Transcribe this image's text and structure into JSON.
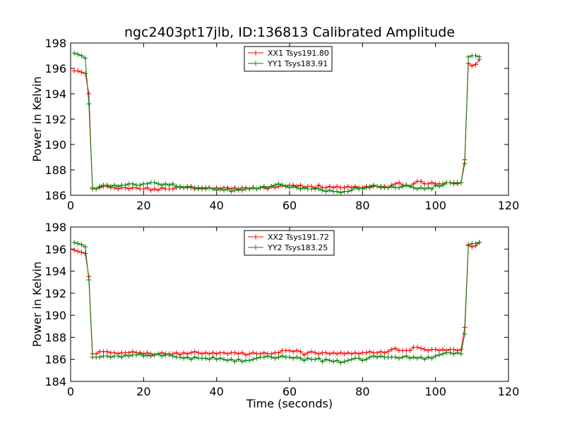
{
  "chart_data": {
    "type": "line",
    "title": "ngc2403pt17jlb, ID:136813 Calibrated Amplitude",
    "colors": {
      "red": "#ff0000",
      "green": "#007f00"
    },
    "panels": [
      {
        "ylabel": "Power in Kelvin",
        "xlabel": "",
        "xlim": [
          0,
          120
        ],
        "ylim": [
          186,
          198
        ],
        "xticks": [
          "0",
          "20",
          "40",
          "60",
          "80",
          "100",
          "120"
        ],
        "yticks": [
          "186",
          "188",
          "190",
          "192",
          "194",
          "196",
          "198"
        ],
        "legend_position": "top-center",
        "series": [
          {
            "name": "XX1 Tsys191.80",
            "color": "#ff0000",
            "x": [
              1,
              2,
              3,
              4,
              5,
              6,
              7,
              8,
              9,
              10,
              11,
              12,
              13,
              14,
              15,
              16,
              17,
              18,
              19,
              20,
              21,
              22,
              23,
              24,
              25,
              26,
              27,
              28,
              29,
              30,
              31,
              32,
              33,
              34,
              35,
              36,
              37,
              38,
              39,
              40,
              41,
              42,
              43,
              44,
              45,
              46,
              47,
              48,
              49,
              50,
              51,
              52,
              53,
              54,
              55,
              56,
              57,
              58,
              59,
              60,
              61,
              62,
              63,
              64,
              65,
              66,
              67,
              68,
              69,
              70,
              71,
              72,
              73,
              74,
              75,
              76,
              77,
              78,
              79,
              80,
              81,
              82,
              83,
              84,
              85,
              86,
              87,
              88,
              89,
              90,
              91,
              92,
              93,
              94,
              95,
              96,
              97,
              98,
              99,
              100,
              101,
              102,
              103,
              104,
              105,
              106,
              107,
              108,
              109,
              110,
              111,
              112
            ],
            "y": [
              195.8,
              195.8,
              195.7,
              195.6,
              194.0,
              186.5,
              186.5,
              186.6,
              186.7,
              186.7,
              186.6,
              186.6,
              186.5,
              186.6,
              186.6,
              186.5,
              186.6,
              186.6,
              186.5,
              186.5,
              186.6,
              186.4,
              186.5,
              186.4,
              186.6,
              186.5,
              186.5,
              186.5,
              186.6,
              186.6,
              186.6,
              186.6,
              186.7,
              186.5,
              186.6,
              186.5,
              186.6,
              186.6,
              186.5,
              186.6,
              186.5,
              186.6,
              186.6,
              186.5,
              186.6,
              186.4,
              186.6,
              186.6,
              186.5,
              186.6,
              186.5,
              186.6,
              186.6,
              186.5,
              186.7,
              186.6,
              186.7,
              186.8,
              186.7,
              186.8,
              186.8,
              186.7,
              186.8,
              186.6,
              186.7,
              186.7,
              186.5,
              186.8,
              186.6,
              186.6,
              186.7,
              186.6,
              186.7,
              186.6,
              186.6,
              186.7,
              186.6,
              186.7,
              186.6,
              186.6,
              186.7,
              186.6,
              186.7,
              186.7,
              186.6,
              186.7,
              186.6,
              186.8,
              186.9,
              187.0,
              186.8,
              186.8,
              186.7,
              186.9,
              187.1,
              187.1,
              186.9,
              186.9,
              187.0,
              186.9,
              186.9,
              186.9,
              187.0,
              187.0,
              187.0,
              186.9,
              187.0,
              188.8,
              196.4,
              196.2,
              196.3,
              196.7
            ]
          },
          {
            "name": "YY1 Tsys183.91",
            "color": "#007f00",
            "x": [
              1,
              2,
              3,
              4,
              5,
              6,
              7,
              8,
              9,
              10,
              11,
              12,
              13,
              14,
              15,
              16,
              17,
              18,
              19,
              20,
              21,
              22,
              23,
              24,
              25,
              26,
              27,
              28,
              29,
              30,
              31,
              32,
              33,
              34,
              35,
              36,
              37,
              38,
              39,
              40,
              41,
              42,
              43,
              44,
              45,
              46,
              47,
              48,
              49,
              50,
              51,
              52,
              53,
              54,
              55,
              56,
              57,
              58,
              59,
              60,
              61,
              62,
              63,
              64,
              65,
              66,
              67,
              68,
              69,
              70,
              71,
              72,
              73,
              74,
              75,
              76,
              77,
              78,
              79,
              80,
              81,
              82,
              83,
              84,
              85,
              86,
              87,
              88,
              89,
              90,
              91,
              92,
              93,
              94,
              95,
              96,
              97,
              98,
              99,
              100,
              101,
              102,
              103,
              104,
              105,
              106,
              107,
              108,
              109,
              110,
              111,
              112
            ],
            "y": [
              197.2,
              197.1,
              197.0,
              196.8,
              193.2,
              186.6,
              186.5,
              186.7,
              186.8,
              186.8,
              186.7,
              186.8,
              186.7,
              186.8,
              186.8,
              186.9,
              186.9,
              186.8,
              186.8,
              186.9,
              186.9,
              187.0,
              187.0,
              186.9,
              186.8,
              186.9,
              186.8,
              186.9,
              186.7,
              186.7,
              186.6,
              186.7,
              186.6,
              186.6,
              186.5,
              186.6,
              186.5,
              186.6,
              186.5,
              186.4,
              186.5,
              186.4,
              186.5,
              186.3,
              186.4,
              186.5,
              186.4,
              186.5,
              186.5,
              186.6,
              186.5,
              186.6,
              186.7,
              186.6,
              186.7,
              186.8,
              186.9,
              186.8,
              186.7,
              186.6,
              186.7,
              186.6,
              186.5,
              186.6,
              186.5,
              186.5,
              186.6,
              186.5,
              186.4,
              186.3,
              186.4,
              186.3,
              186.3,
              186.2,
              186.3,
              186.3,
              186.4,
              186.6,
              186.5,
              186.5,
              186.6,
              186.7,
              186.8,
              186.7,
              186.7,
              186.6,
              186.6,
              186.7,
              186.6,
              186.6,
              186.7,
              186.8,
              186.7,
              186.6,
              186.5,
              186.6,
              186.5,
              186.6,
              186.5,
              186.8,
              186.7,
              186.8,
              187.0,
              187.0,
              186.9,
              187.0,
              187.0,
              188.5,
              196.9,
              197.0,
              197.0,
              196.9
            ]
          }
        ]
      },
      {
        "ylabel": "Power in Kelvin",
        "xlabel": "Time (seconds)",
        "xlim": [
          0,
          120
        ],
        "ylim": [
          184,
          198
        ],
        "xticks": [
          "0",
          "20",
          "40",
          "60",
          "80",
          "100",
          "120"
        ],
        "yticks": [
          "184",
          "186",
          "188",
          "190",
          "192",
          "194",
          "196",
          "198"
        ],
        "legend_position": "top-center",
        "series": [
          {
            "name": "XX2 Tsys191.72",
            "color": "#ff0000",
            "x": [
              1,
              2,
              3,
              4,
              5,
              6,
              7,
              8,
              9,
              10,
              11,
              12,
              13,
              14,
              15,
              16,
              17,
              18,
              19,
              20,
              21,
              22,
              23,
              24,
              25,
              26,
              27,
              28,
              29,
              30,
              31,
              32,
              33,
              34,
              35,
              36,
              37,
              38,
              39,
              40,
              41,
              42,
              43,
              44,
              45,
              46,
              47,
              48,
              49,
              50,
              51,
              52,
              53,
              54,
              55,
              56,
              57,
              58,
              59,
              60,
              61,
              62,
              63,
              64,
              65,
              66,
              67,
              68,
              69,
              70,
              71,
              72,
              73,
              74,
              75,
              76,
              77,
              78,
              79,
              80,
              81,
              82,
              83,
              84,
              85,
              86,
              87,
              88,
              89,
              90,
              91,
              92,
              93,
              94,
              95,
              96,
              97,
              98,
              99,
              100,
              101,
              102,
              103,
              104,
              105,
              106,
              107,
              108,
              109,
              110,
              111,
              112
            ],
            "y": [
              195.9,
              195.8,
              195.7,
              195.6,
              193.5,
              186.5,
              186.5,
              186.7,
              186.7,
              186.7,
              186.6,
              186.6,
              186.5,
              186.6,
              186.6,
              186.6,
              186.7,
              186.6,
              186.6,
              186.5,
              186.6,
              186.5,
              186.4,
              186.5,
              186.6,
              186.5,
              186.5,
              186.5,
              186.6,
              186.4,
              186.6,
              186.5,
              186.6,
              186.7,
              186.6,
              186.5,
              186.6,
              186.5,
              186.6,
              186.5,
              186.6,
              186.6,
              186.5,
              186.6,
              186.6,
              186.5,
              186.6,
              186.4,
              186.5,
              186.6,
              186.5,
              186.5,
              186.6,
              186.5,
              186.5,
              186.6,
              186.6,
              186.8,
              186.8,
              186.8,
              186.7,
              186.8,
              186.7,
              186.4,
              186.6,
              186.7,
              186.6,
              186.5,
              186.6,
              186.6,
              186.5,
              186.6,
              186.5,
              186.6,
              186.5,
              186.6,
              186.5,
              186.6,
              186.5,
              186.6,
              186.6,
              186.7,
              186.6,
              186.6,
              186.7,
              186.6,
              186.7,
              186.9,
              187.0,
              186.8,
              186.8,
              186.8,
              186.8,
              187.1,
              187.1,
              187.0,
              186.9,
              186.8,
              186.9,
              186.9,
              186.8,
              186.9,
              186.8,
              186.9,
              186.9,
              186.8,
              186.9,
              188.9,
              196.4,
              196.2,
              196.3,
              196.6
            ]
          },
          {
            "name": "YY2 Tsys183.25",
            "color": "#007f00",
            "x": [
              1,
              2,
              3,
              4,
              5,
              6,
              7,
              8,
              9,
              10,
              11,
              12,
              13,
              14,
              15,
              16,
              17,
              18,
              19,
              20,
              21,
              22,
              23,
              24,
              25,
              26,
              27,
              28,
              29,
              30,
              31,
              32,
              33,
              34,
              35,
              36,
              37,
              38,
              39,
              40,
              41,
              42,
              43,
              44,
              45,
              46,
              47,
              48,
              49,
              50,
              51,
              52,
              53,
              54,
              55,
              56,
              57,
              58,
              59,
              60,
              61,
              62,
              63,
              64,
              65,
              66,
              67,
              68,
              69,
              70,
              71,
              72,
              73,
              74,
              75,
              76,
              77,
              78,
              79,
              80,
              81,
              82,
              83,
              84,
              85,
              86,
              87,
              88,
              89,
              90,
              91,
              92,
              93,
              94,
              95,
              96,
              97,
              98,
              99,
              100,
              101,
              102,
              103,
              104,
              105,
              106,
              107,
              108,
              109,
              110,
              111,
              112
            ],
            "y": [
              196.6,
              196.5,
              196.4,
              196.2,
              193.2,
              186.2,
              186.2,
              186.2,
              186.3,
              186.3,
              186.2,
              186.3,
              186.3,
              186.2,
              186.4,
              186.3,
              186.4,
              186.4,
              186.5,
              186.3,
              186.4,
              186.3,
              186.4,
              186.5,
              186.3,
              186.4,
              186.4,
              186.3,
              186.2,
              186.2,
              186.1,
              186.2,
              186.0,
              186.2,
              186.1,
              186.1,
              186.1,
              186.0,
              186.2,
              186.0,
              186.1,
              186.0,
              185.9,
              186.0,
              185.8,
              186.0,
              185.8,
              185.9,
              185.9,
              186.0,
              186.1,
              186.2,
              186.2,
              186.3,
              186.2,
              186.1,
              186.2,
              186.3,
              186.2,
              186.2,
              186.1,
              186.2,
              186.1,
              185.9,
              186.1,
              186.0,
              186.0,
              186.1,
              185.8,
              186.0,
              185.9,
              185.8,
              185.9,
              185.7,
              185.8,
              185.9,
              186.0,
              186.1,
              186.1,
              185.9,
              186.0,
              186.2,
              186.3,
              186.2,
              186.3,
              186.2,
              186.2,
              186.2,
              186.2,
              186.1,
              186.2,
              186.3,
              186.1,
              186.2,
              186.1,
              186.2,
              186.0,
              186.2,
              186.1,
              186.3,
              186.4,
              186.5,
              186.6,
              186.6,
              186.5,
              186.6,
              186.5,
              188.3,
              196.3,
              196.5,
              196.5,
              196.6
            ]
          }
        ]
      }
    ]
  }
}
